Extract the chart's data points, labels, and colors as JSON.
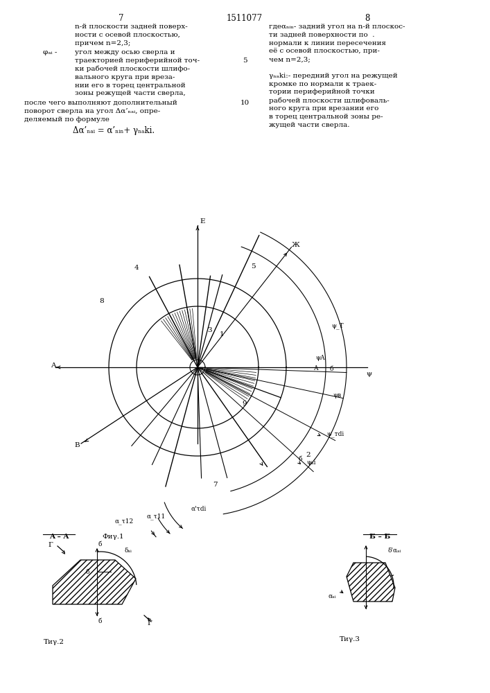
{
  "background": "#ffffff",
  "line_color": "#000000",
  "patent_number": "1511077",
  "page_left": "7",
  "page_right": "8"
}
